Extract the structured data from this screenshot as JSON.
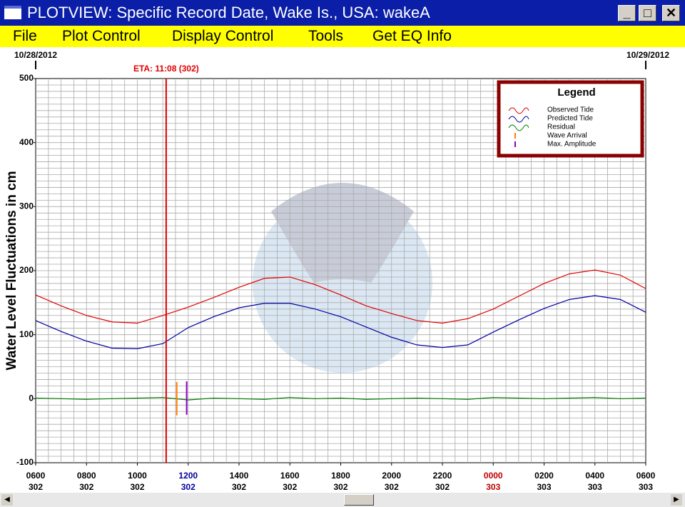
{
  "window": {
    "title": "PLOTVIEW: Specific Record Date, Wake Is., USA: wakeA",
    "menu": [
      "File",
      "Plot Control",
      "Display Control",
      "Tools",
      "Get EQ Info"
    ],
    "date_left": "10/28/2012",
    "date_right": "10/29/2012"
  },
  "chart_data": {
    "type": "line",
    "y_label": "Water Level Fluctuations in cm",
    "legend_title": "Legend",
    "annotation": {
      "text": "ETA: 11:08 (302)",
      "x": 11.133,
      "color": "#e00000"
    },
    "xlim": [
      6,
      30
    ],
    "ylim": [
      -100,
      500
    ],
    "yticks": [
      -100,
      0,
      100,
      200,
      300,
      400,
      500
    ],
    "xticks": [
      {
        "value": 6,
        "label": "0600"
      },
      {
        "value": 8,
        "label": "0800"
      },
      {
        "value": 10,
        "label": "1000"
      },
      {
        "value": 12,
        "label": "1200"
      },
      {
        "value": 14,
        "label": "1400"
      },
      {
        "value": 16,
        "label": "1600"
      },
      {
        "value": 18,
        "label": "1800"
      },
      {
        "value": 20,
        "label": "2000"
      },
      {
        "value": 22,
        "label": "2200"
      },
      {
        "value": 24,
        "label": "0000"
      },
      {
        "value": 26,
        "label": "0200"
      },
      {
        "value": 28,
        "label": "0400"
      },
      {
        "value": 30,
        "label": "0600"
      }
    ],
    "xtick_days": [
      "302",
      "302",
      "302",
      "302",
      "302",
      "302",
      "302",
      "302",
      "302",
      "303",
      "303",
      "303",
      "303"
    ],
    "xtick_colors": [
      "#000",
      "#000",
      "#000",
      "#0000a0",
      "#000",
      "#000",
      "#000",
      "#000",
      "#000",
      "#c00000",
      "#000",
      "#000",
      "#000"
    ],
    "grid": true,
    "minor_x_step": 0.5,
    "minor_y_step": 10,
    "x": [
      6,
      7,
      8,
      9,
      10,
      11,
      12,
      13,
      14,
      15,
      16,
      17,
      18,
      19,
      20,
      21,
      22,
      23,
      24,
      25,
      26,
      27,
      28,
      29,
      30
    ],
    "series": [
      {
        "name": "Observed Tide",
        "color": "#e00000",
        "values": [
          162,
          145,
          130,
          120,
          118,
          130,
          143,
          158,
          174,
          188,
          190,
          178,
          162,
          145,
          133,
          122,
          118,
          125,
          140,
          160,
          180,
          195,
          201,
          193,
          172
        ]
      },
      {
        "name": "Predicted Tide",
        "color": "#0000a0",
        "values": [
          122,
          105,
          90,
          79,
          78,
          86,
          111,
          128,
          142,
          149,
          149,
          140,
          128,
          112,
          96,
          84,
          80,
          84,
          104,
          123,
          141,
          155,
          161,
          155,
          135
        ]
      },
      {
        "name": "Residual",
        "color": "#008000",
        "values": [
          1,
          0,
          -1,
          0,
          1,
          2,
          -2,
          1,
          0,
          -1,
          2,
          0,
          1,
          -1,
          0,
          1,
          0,
          -1,
          2,
          1,
          0,
          1,
          2,
          0,
          1
        ]
      }
    ],
    "markers": [
      {
        "name": "Wave Arrival",
        "color": "#ff8000",
        "x": 11.55,
        "range": [
          -26,
          26
        ]
      },
      {
        "name": "Max. Amplitude",
        "color": "#9000c0",
        "x": 11.94,
        "range": [
          -25,
          27
        ]
      }
    ]
  }
}
